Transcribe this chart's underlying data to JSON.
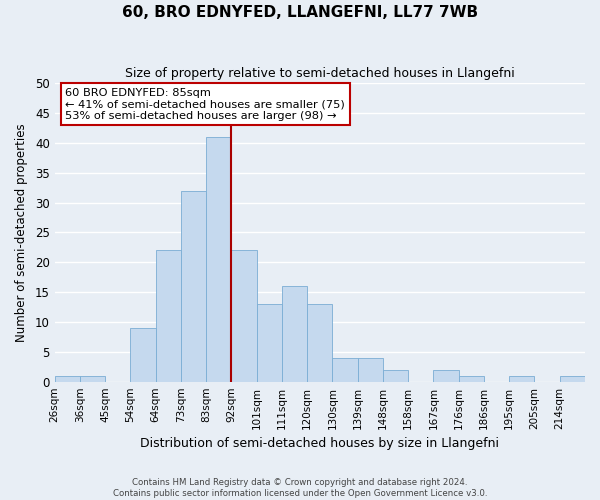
{
  "title": "60, BRO EDNYFED, LLANGEFNI, LL77 7WB",
  "subtitle": "Size of property relative to semi-detached houses in Llangefni",
  "xlabel": "Distribution of semi-detached houses by size in Llangefni",
  "ylabel": "Number of semi-detached properties",
  "bin_labels": [
    "26sqm",
    "36sqm",
    "45sqm",
    "54sqm",
    "64sqm",
    "73sqm",
    "83sqm",
    "92sqm",
    "101sqm",
    "111sqm",
    "120sqm",
    "130sqm",
    "139sqm",
    "148sqm",
    "158sqm",
    "167sqm",
    "176sqm",
    "186sqm",
    "195sqm",
    "205sqm",
    "214sqm"
  ],
  "bar_heights": [
    1,
    1,
    0,
    9,
    22,
    32,
    41,
    22,
    13,
    16,
    13,
    4,
    4,
    2,
    0,
    2,
    1,
    0,
    1,
    0,
    1
  ],
  "bar_color": "#c5d9ee",
  "bar_edge_color": "#7aadd4",
  "property_value_bin": 6,
  "vline_color": "#aa0000",
  "ylim": [
    0,
    50
  ],
  "yticks": [
    0,
    5,
    10,
    15,
    20,
    25,
    30,
    35,
    40,
    45,
    50
  ],
  "annotation_title": "60 BRO EDNYFED: 85sqm",
  "annotation_line1": "← 41% of semi-detached houses are smaller (75)",
  "annotation_line2": "53% of semi-detached houses are larger (98) →",
  "annotation_box_color": "#ffffff",
  "annotation_box_edge": "#bb0000",
  "footer_line1": "Contains HM Land Registry data © Crown copyright and database right 2024.",
  "footer_line2": "Contains public sector information licensed under the Open Government Licence v3.0.",
  "background_color": "#e8eef5",
  "grid_color": "#ffffff"
}
